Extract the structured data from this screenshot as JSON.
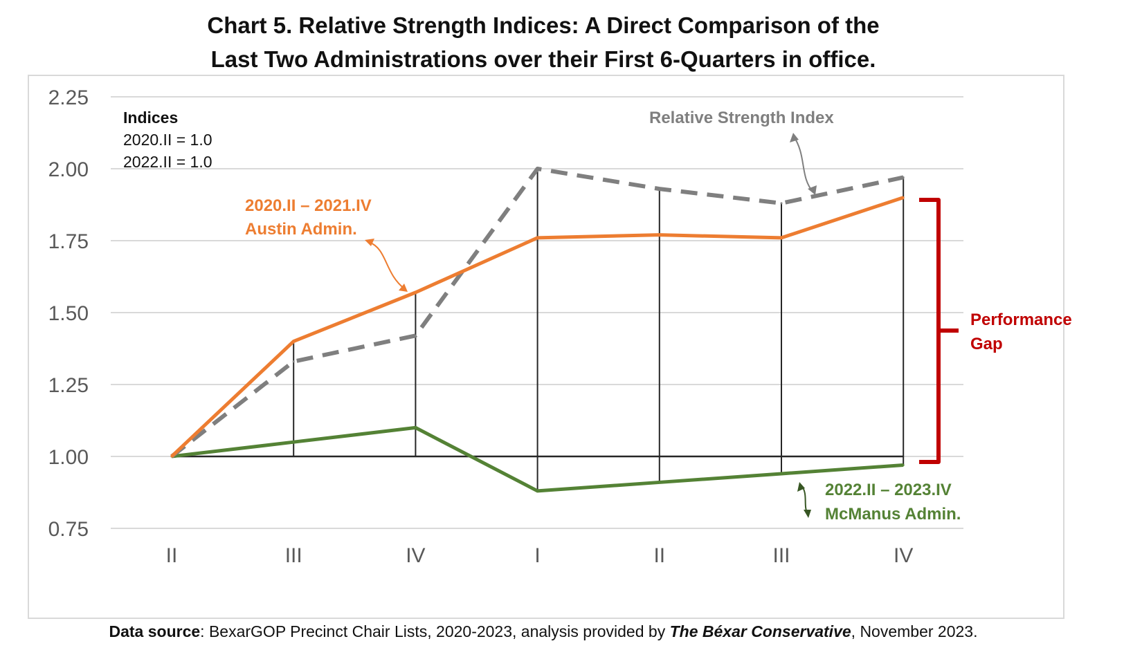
{
  "title": {
    "line1": "Chart 5. Relative Strength Indices: A Direct Comparison of the",
    "line2": "Last Two Administrations over their First 6-Quarters in office."
  },
  "source": {
    "label": "Data source",
    "text": ": BexarGOP Precinct Chair Lists, 2020-2023, analysis provided by ",
    "publication": "The Béxar Conservative",
    "date": ", November 2023."
  },
  "chart_data": {
    "type": "line",
    "title": "Chart 5. Relative Strength Indices: A Direct Comparison of the Last Two Administrations over their First 6-Quarters in office.",
    "categories": [
      "II",
      "III",
      "IV",
      "I",
      "II",
      "III",
      "IV"
    ],
    "ylim": [
      0.75,
      2.25
    ],
    "yticks": [
      "2.25",
      "2.00",
      "1.75",
      "1.50",
      "1.25",
      "1.00",
      "0.75"
    ],
    "ytick_values": [
      2.25,
      2.0,
      1.75,
      1.5,
      1.25,
      1.0,
      0.75
    ],
    "grid": true,
    "series": [
      {
        "name": "2020.II – 2021.IV Austin Admin.",
        "color": "#ed7d31",
        "style": "solid",
        "values": [
          1.0,
          1.4,
          1.57,
          1.76,
          1.77,
          1.76,
          1.9
        ]
      },
      {
        "name": "2022.II – 2023.IV McManus Admin.",
        "color": "#548235",
        "style": "solid",
        "values": [
          1.0,
          1.05,
          1.1,
          0.88,
          0.91,
          0.94,
          0.97
        ]
      },
      {
        "name": "Relative Strength Index",
        "color": "#7f7f7f",
        "style": "dashed",
        "values": [
          1.0,
          1.33,
          1.42,
          2.0,
          1.93,
          1.88,
          1.97
        ]
      }
    ],
    "baseline": 1.0,
    "annotations": {
      "indices_title": "Indices",
      "indices_line1": "2020.II = 1.0",
      "indices_line2": "2022.II = 1.0",
      "rsi_label": "Relative Strength Index",
      "austin_line1": "2020.II – 2021.IV",
      "austin_line2": "Austin Admin.",
      "mcmanus_line1": "2022.II – 2023.IV",
      "mcmanus_line2": "McManus Admin.",
      "gap_line1": "Performance",
      "gap_line2": "Gap"
    },
    "colors": {
      "gap": "#c00000",
      "grid": "#d9d9d9",
      "axis": "#262626",
      "tick": "#595959"
    }
  }
}
